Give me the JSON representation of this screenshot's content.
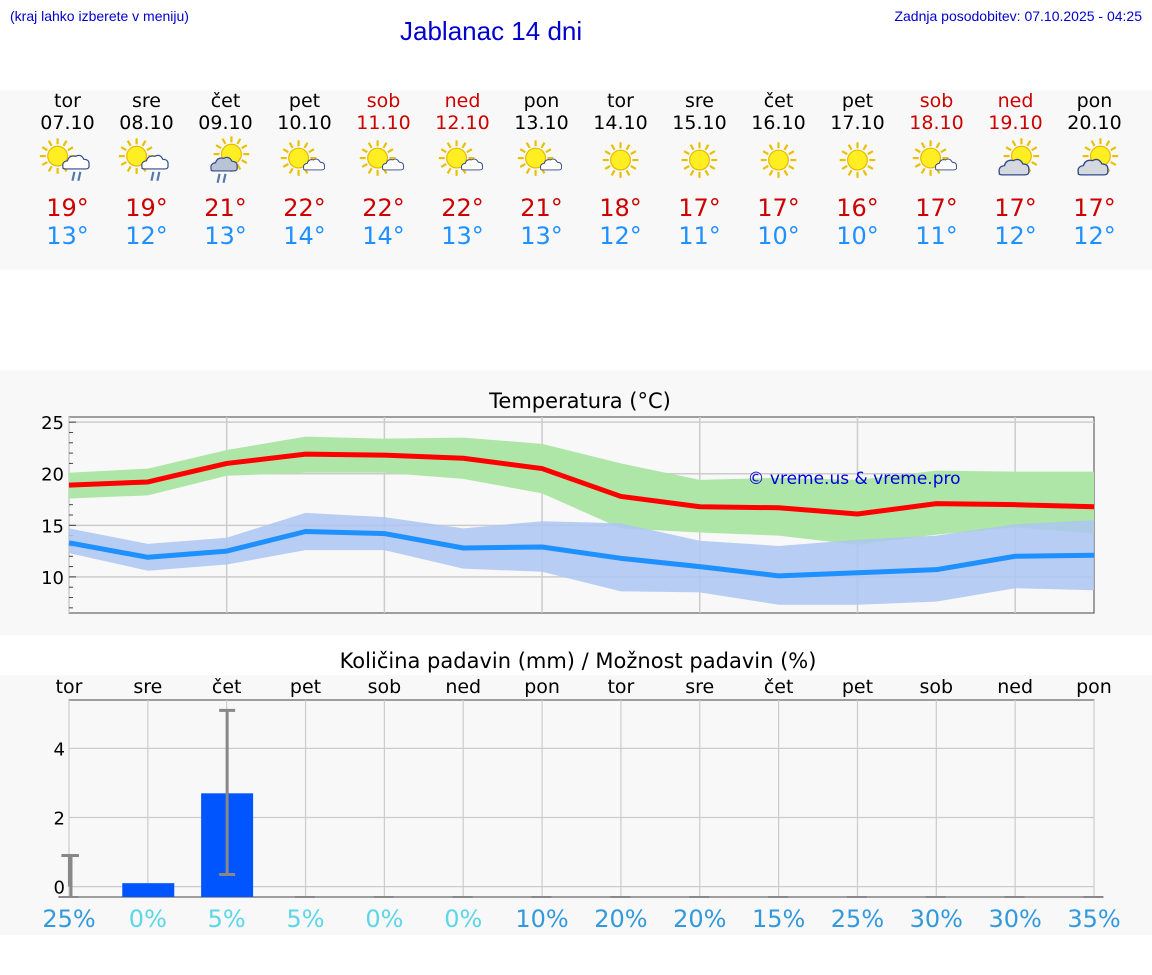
{
  "header": {
    "left_note": "(kraj lahko izberete v meniju)",
    "title": "Jablanac 14 dni",
    "updated": "Zadnja posodobitev: 07.10.2025 - 04:25"
  },
  "days": [
    {
      "name": "tor",
      "date": "07.10",
      "weekend": false,
      "icon": "sun-cloud-rain-icon",
      "tmax": "19°",
      "tmin": "13°"
    },
    {
      "name": "sre",
      "date": "08.10",
      "weekend": false,
      "icon": "sun-cloud-rain-icon",
      "tmax": "19°",
      "tmin": "12°"
    },
    {
      "name": "čet",
      "date": "09.10",
      "weekend": false,
      "icon": "sun-darkcloud-rain-icon",
      "tmax": "21°",
      "tmin": "13°"
    },
    {
      "name": "pet",
      "date": "10.10",
      "weekend": false,
      "icon": "sun-small-cloud-icon",
      "tmax": "22°",
      "tmin": "14°"
    },
    {
      "name": "sob",
      "date": "11.10",
      "weekend": true,
      "icon": "sun-small-cloud-icon",
      "tmax": "22°",
      "tmin": "14°"
    },
    {
      "name": "ned",
      "date": "12.10",
      "weekend": true,
      "icon": "sun-small-cloud-icon",
      "tmax": "22°",
      "tmin": "13°"
    },
    {
      "name": "pon",
      "date": "13.10",
      "weekend": false,
      "icon": "sun-small-cloud-icon",
      "tmax": "21°",
      "tmin": "13°"
    },
    {
      "name": "tor",
      "date": "14.10",
      "weekend": false,
      "icon": "sun-icon",
      "tmax": "18°",
      "tmin": "12°"
    },
    {
      "name": "sre",
      "date": "15.10",
      "weekend": false,
      "icon": "sun-icon",
      "tmax": "17°",
      "tmin": "11°"
    },
    {
      "name": "čet",
      "date": "16.10",
      "weekend": false,
      "icon": "sun-icon",
      "tmax": "17°",
      "tmin": "10°"
    },
    {
      "name": "pet",
      "date": "17.10",
      "weekend": false,
      "icon": "sun-icon",
      "tmax": "16°",
      "tmin": "10°"
    },
    {
      "name": "sob",
      "date": "18.10",
      "weekend": true,
      "icon": "sun-small-cloud-icon",
      "tmax": "17°",
      "tmin": "11°"
    },
    {
      "name": "ned",
      "date": "19.10",
      "weekend": true,
      "icon": "cloud-sun-icon",
      "tmax": "17°",
      "tmin": "12°"
    },
    {
      "name": "pon",
      "date": "20.10",
      "weekend": false,
      "icon": "cloud-sun-icon",
      "tmax": "17°",
      "tmin": "12°"
    }
  ],
  "colors": {
    "max": "#ff0000",
    "min": "#1e90ff",
    "max_band": "#aee6a8",
    "min_band": "#adc6f2",
    "bar": "#0055ff",
    "pct_dark": "#3399dd",
    "pct_light": "#5cd6e8"
  },
  "chart_data": [
    {
      "type": "line",
      "title": "Temperatura (°C)",
      "watermark": "© vreme.us & vreme.pro",
      "x": [
        0,
        1,
        2,
        3,
        4,
        5,
        6,
        7,
        8,
        9,
        10,
        11,
        12,
        13
      ],
      "ylim": [
        6.5,
        25.5
      ],
      "yticks": [
        10,
        15,
        20,
        25
      ],
      "series": [
        {
          "name": "max",
          "values": [
            18.9,
            19.2,
            21.0,
            21.9,
            21.8,
            21.5,
            20.5,
            17.8,
            16.8,
            16.7,
            16.1,
            17.1,
            17.0,
            16.8
          ],
          "band_low": [
            17.6,
            17.9,
            19.8,
            20.1,
            20.1,
            19.5,
            18.1,
            14.7,
            14.3,
            14.0,
            13.1,
            14.1,
            14.8,
            14.2
          ],
          "band_high": [
            20.1,
            20.5,
            22.3,
            23.6,
            23.4,
            23.5,
            22.9,
            21.0,
            19.4,
            19.6,
            19.4,
            20.3,
            20.2,
            20.2
          ]
        },
        {
          "name": "min",
          "values": [
            13.3,
            11.9,
            12.5,
            14.4,
            14.2,
            12.8,
            12.9,
            11.8,
            11.0,
            10.1,
            10.4,
            10.7,
            12.0,
            12.1
          ],
          "band_low": [
            12.3,
            10.6,
            11.2,
            12.6,
            12.6,
            10.8,
            10.5,
            8.6,
            8.5,
            7.3,
            7.3,
            7.6,
            8.9,
            8.7
          ],
          "band_high": [
            14.7,
            13.2,
            13.8,
            16.2,
            15.8,
            14.7,
            15.4,
            15.2,
            13.5,
            13.0,
            13.6,
            14.0,
            15.1,
            15.5
          ]
        }
      ]
    },
    {
      "type": "bar",
      "title": "Količina padavin (mm) / Možnost padavin (%)",
      "categories": [
        "tor",
        "sre",
        "čet",
        "pet",
        "sob",
        "ned",
        "pon",
        "tor",
        "sre",
        "čet",
        "pet",
        "sob",
        "ned",
        "pon"
      ],
      "values": [
        0,
        0.1,
        2.7,
        0,
        0,
        0,
        0,
        0,
        0,
        0,
        0,
        0,
        0,
        0
      ],
      "err_high": [
        0.9,
        0.1,
        5.1,
        0,
        0,
        0,
        0,
        0,
        0,
        0,
        0,
        0,
        0,
        0
      ],
      "err_low": [
        0,
        0.05,
        0.35,
        0,
        0,
        0,
        0,
        0,
        0,
        0,
        0,
        0,
        0,
        0
      ],
      "ylim": [
        -0.3,
        5.4
      ],
      "yticks": [
        0,
        2,
        4
      ],
      "chance": [
        "25%",
        "0%",
        "5%",
        "5%",
        "0%",
        "0%",
        "10%",
        "20%",
        "20%",
        "15%",
        "25%",
        "30%",
        "30%",
        "35%"
      ]
    }
  ]
}
